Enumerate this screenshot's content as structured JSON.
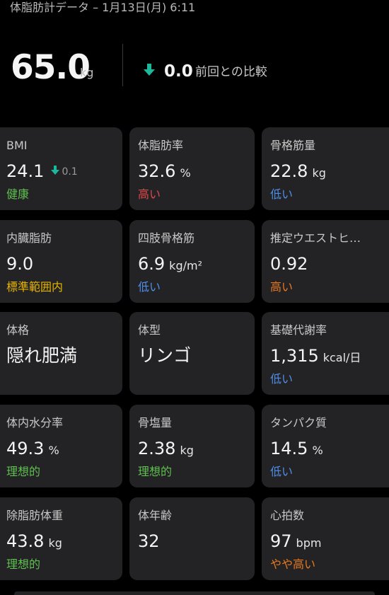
{
  "header": {
    "title": "体脂肪計データ – 1月13日(月) 6:11"
  },
  "summary": {
    "weight": "65.0",
    "weight_unit": "kg",
    "diff_icon": "arrow-down-icon",
    "diff_value": "0.0",
    "diff_label": "前回との比較"
  },
  "colors": {
    "good": "#5fbf4f",
    "high": "#e04848",
    "low": "#4f8ee8",
    "standard": "#e6b400",
    "slightly_high": "#e8781e",
    "arrow": "#1bb89b"
  },
  "cards": [
    {
      "title": "BMI",
      "value": "24.1",
      "unit": "",
      "delta": "0.1",
      "status": "健康"
    },
    {
      "title": "体脂肪率",
      "value": "32.6",
      "unit": "%",
      "status": "高い"
    },
    {
      "title": "骨格筋量",
      "value": "22.8",
      "unit": "kg",
      "status": "低い"
    },
    {
      "title": "内臓脂肪",
      "value": "9.0",
      "unit": "",
      "status": "標準範囲内"
    },
    {
      "title": "四肢骨格筋",
      "value": "6.9",
      "unit": "kg/m²",
      "status": "低い"
    },
    {
      "title": "推定ウエストヒ…",
      "value": "0.92",
      "unit": "",
      "status": "高い"
    },
    {
      "title": "体格",
      "value": "隠れ肥満",
      "unit": "",
      "status": ""
    },
    {
      "title": "体型",
      "value": "リンゴ",
      "unit": "",
      "status": ""
    },
    {
      "title": "基礎代謝率",
      "value": "1,315",
      "unit": "kcal/日",
      "status": "低い"
    },
    {
      "title": "体内水分率",
      "value": "49.3",
      "unit": "%",
      "status": "理想的"
    },
    {
      "title": "骨塩量",
      "value": "2.38",
      "unit": "kg",
      "status": "理想的"
    },
    {
      "title": "タンパク質",
      "value": "14.5",
      "unit": "%",
      "status": "低い"
    },
    {
      "title": "除脂肪体重",
      "value": "43.8",
      "unit": "kg",
      "status": "理想的"
    },
    {
      "title": "体年齢",
      "value": "32",
      "unit": "",
      "status": ""
    },
    {
      "title": "心拍数",
      "value": "97",
      "unit": "bpm",
      "status": "やや高い"
    }
  ]
}
